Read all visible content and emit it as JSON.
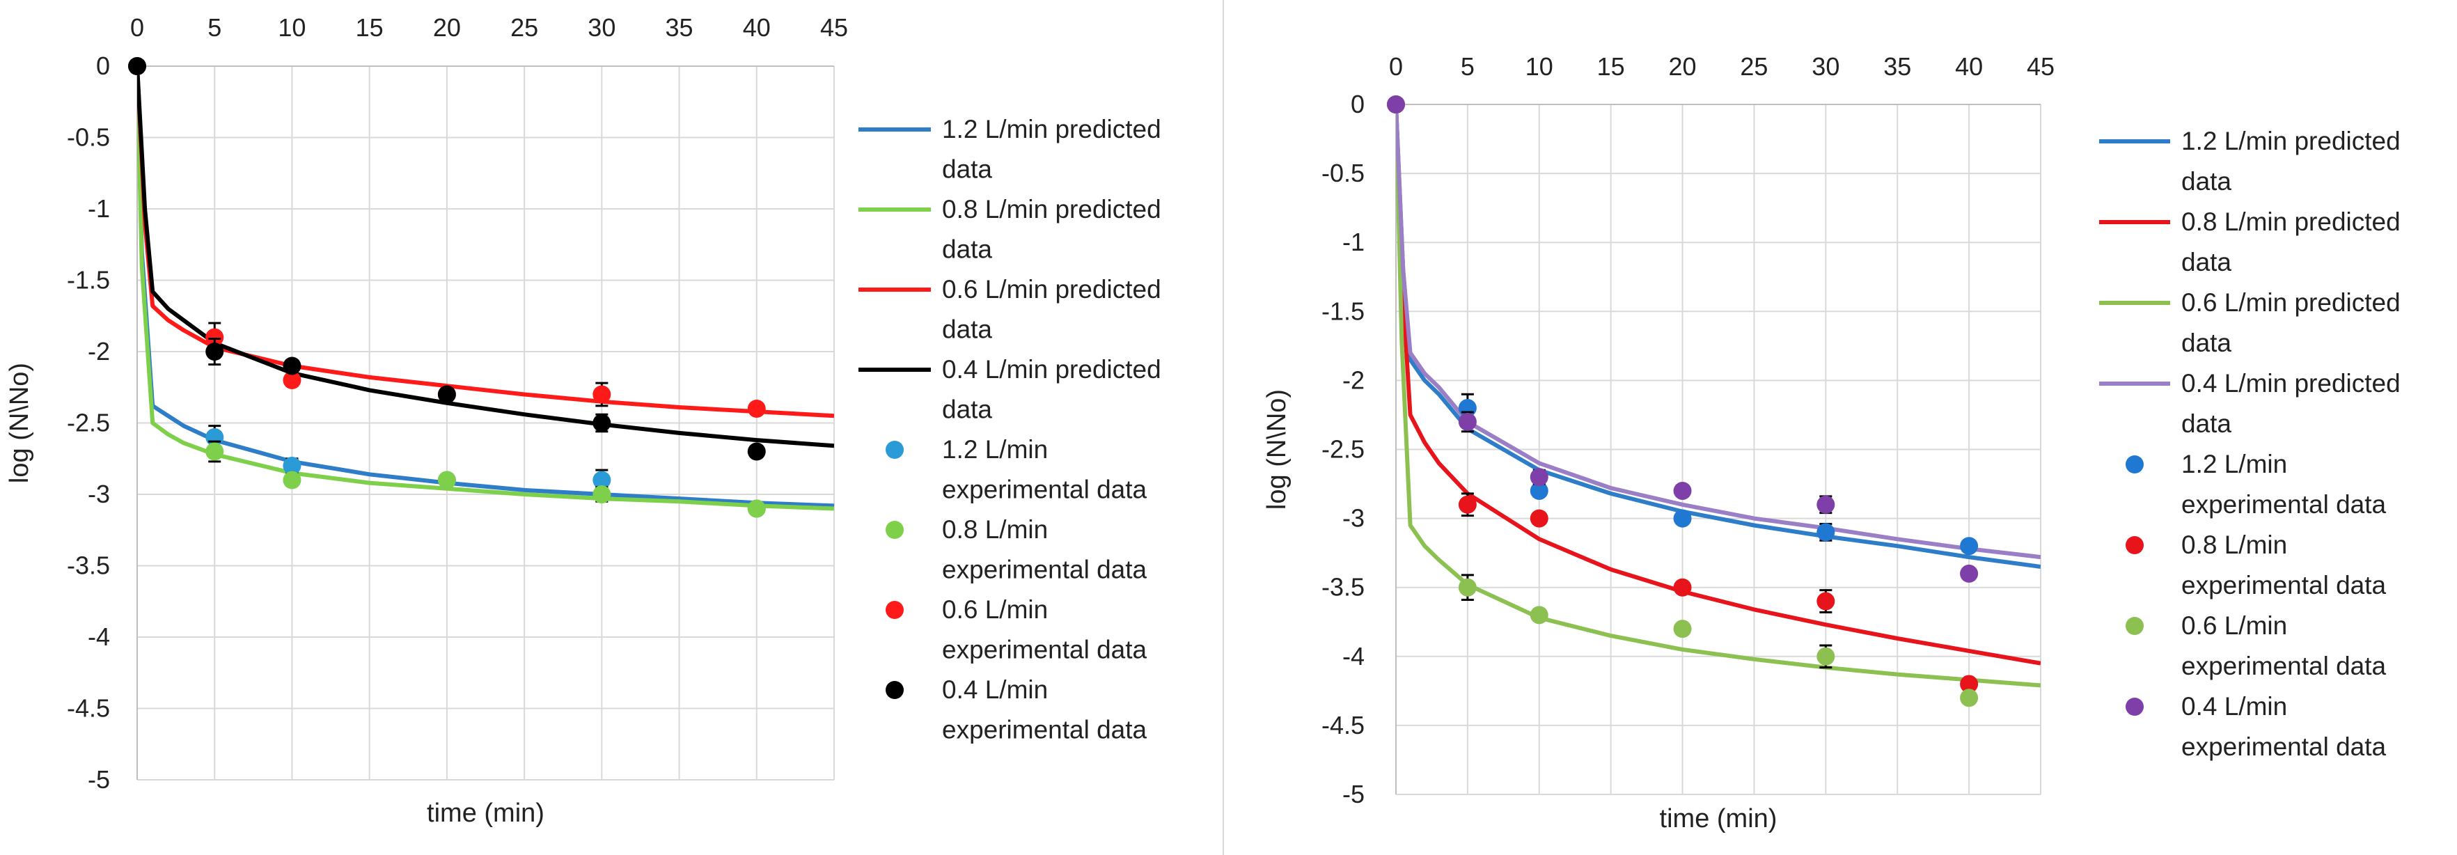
{
  "chart_data": [
    {
      "type": "scatter",
      "xlabel": "time (min)",
      "ylabel": "log (N\\No)",
      "xlim": [
        0,
        45
      ],
      "ylim": [
        -5,
        0
      ],
      "xticks": [
        "0",
        "5",
        "10",
        "15",
        "20",
        "25",
        "30",
        "35",
        "40",
        "45"
      ],
      "yticks": [
        "0",
        "-0.5",
        "-1",
        "-1.5",
        "-2",
        "-2.5",
        "-3",
        "-3.5",
        "-4",
        "-4.5",
        "-5"
      ],
      "legend_position": "right",
      "lines": [
        {
          "name": "1.2 L/min predicted data",
          "color": "#2e7dc8",
          "x": [
            0,
            0.3,
            1,
            2,
            3,
            5,
            10,
            15,
            20,
            25,
            30,
            35,
            40,
            45
          ],
          "y": [
            0,
            -1.3,
            -2.38,
            -2.45,
            -2.52,
            -2.62,
            -2.77,
            -2.86,
            -2.92,
            -2.97,
            -3.0,
            -3.03,
            -3.06,
            -3.08
          ]
        },
        {
          "name": "0.8 L/min predicted data",
          "color": "#7ed04b",
          "x": [
            0,
            0.3,
            1,
            2,
            3,
            5,
            10,
            15,
            20,
            25,
            30,
            35,
            40,
            45
          ],
          "y": [
            0,
            -1.4,
            -2.5,
            -2.58,
            -2.64,
            -2.72,
            -2.85,
            -2.92,
            -2.96,
            -3.0,
            -3.03,
            -3.05,
            -3.08,
            -3.1
          ]
        },
        {
          "name": "0.6 L/min predicted data",
          "color": "#ff1a1a",
          "x": [
            0,
            0.5,
            1,
            2,
            3,
            5,
            10,
            15,
            20,
            25,
            30,
            35,
            40,
            45
          ],
          "y": [
            0,
            -1.1,
            -1.68,
            -1.78,
            -1.85,
            -1.97,
            -2.1,
            -2.18,
            -2.24,
            -2.3,
            -2.35,
            -2.39,
            -2.42,
            -2.45
          ]
        },
        {
          "name": "0.4 L/min predicted data",
          "color": "#000000",
          "x": [
            0,
            0.5,
            1,
            2,
            3,
            5,
            10,
            15,
            20,
            25,
            30,
            35,
            40,
            45
          ],
          "y": [
            0,
            -1.0,
            -1.58,
            -1.7,
            -1.78,
            -1.94,
            -2.15,
            -2.27,
            -2.36,
            -2.44,
            -2.51,
            -2.57,
            -2.62,
            -2.66
          ]
        }
      ],
      "points": [
        {
          "name": "1.2 L/min experimental data",
          "color": "#2a9bd6",
          "x": [
            0,
            5,
            10,
            20,
            30,
            40
          ],
          "y": [
            0,
            -2.6,
            -2.8,
            -2.9,
            -2.9,
            -3.1
          ],
          "err": [
            0,
            0.08,
            0.05,
            0.03,
            0.07,
            0.03
          ]
        },
        {
          "name": "0.8 L/min experimental data",
          "color": "#7ed04b",
          "x": [
            0,
            5,
            10,
            20,
            30,
            40
          ],
          "y": [
            0,
            -2.7,
            -2.9,
            -2.9,
            -3.0,
            -3.1
          ],
          "err": [
            0,
            0.07,
            0.03,
            0.03,
            0.05,
            0.03
          ]
        },
        {
          "name": "0.6 L/min experimental data",
          "color": "#ff1a1a",
          "x": [
            0,
            5,
            10,
            20,
            30,
            40
          ],
          "y": [
            0,
            -1.9,
            -2.2,
            -2.3,
            -2.3,
            -2.4
          ],
          "err": [
            0,
            0.1,
            0.04,
            0.04,
            0.08,
            0.03
          ]
        },
        {
          "name": "0.4 L/min experimental data",
          "color": "#000000",
          "x": [
            0,
            5,
            10,
            20,
            30,
            40
          ],
          "y": [
            0,
            -2.0,
            -2.1,
            -2.3,
            -2.5,
            -2.7
          ],
          "err": [
            0,
            0.09,
            0.04,
            0.04,
            0.06,
            0.03
          ]
        }
      ]
    },
    {
      "type": "scatter",
      "xlabel": "time (min)",
      "ylabel": "log (N\\No)",
      "xlim": [
        0,
        45
      ],
      "ylim": [
        -5,
        0
      ],
      "xticks": [
        "0",
        "5",
        "10",
        "15",
        "20",
        "25",
        "30",
        "35",
        "40",
        "45"
      ],
      "yticks": [
        "0",
        "-0.5",
        "-1",
        "-1.5",
        "-2",
        "-2.5",
        "-3",
        "-3.5",
        "-4",
        "-4.5",
        "-5"
      ],
      "legend_position": "right",
      "lines": [
        {
          "name": "1.2 L/min predicted data",
          "color": "#2e7dc8",
          "x": [
            0,
            0.5,
            1,
            2,
            3,
            5,
            10,
            15,
            20,
            25,
            30,
            35,
            40,
            45
          ],
          "y": [
            0,
            -1.2,
            -1.85,
            -2.0,
            -2.1,
            -2.35,
            -2.65,
            -2.82,
            -2.95,
            -3.05,
            -3.13,
            -3.2,
            -3.28,
            -3.35
          ]
        },
        {
          "name": "0.8 L/min predicted data",
          "color": "#e8141c",
          "x": [
            0,
            0.5,
            1,
            2,
            3,
            5,
            10,
            15,
            20,
            25,
            30,
            35,
            40,
            45
          ],
          "y": [
            0,
            -1.4,
            -2.25,
            -2.45,
            -2.6,
            -2.82,
            -3.15,
            -3.37,
            -3.53,
            -3.66,
            -3.77,
            -3.87,
            -3.96,
            -4.05
          ]
        },
        {
          "name": "0.6 L/min predicted data",
          "color": "#8cc152",
          "x": [
            0,
            0.4,
            1,
            2,
            3,
            5,
            10,
            15,
            20,
            25,
            30,
            35,
            40,
            45
          ],
          "y": [
            0,
            -1.7,
            -3.05,
            -3.2,
            -3.3,
            -3.48,
            -3.72,
            -3.85,
            -3.95,
            -4.02,
            -4.08,
            -4.13,
            -4.17,
            -4.21
          ]
        },
        {
          "name": "0.4 L/min predicted data",
          "color": "#9b7fc6",
          "x": [
            0,
            0.5,
            1,
            2,
            3,
            5,
            10,
            15,
            20,
            25,
            30,
            35,
            40,
            45
          ],
          "y": [
            0,
            -1.2,
            -1.8,
            -1.95,
            -2.05,
            -2.3,
            -2.6,
            -2.78,
            -2.9,
            -3.0,
            -3.07,
            -3.15,
            -3.22,
            -3.28
          ]
        }
      ],
      "points": [
        {
          "name": "1.2 L/min experimental data",
          "color": "#1f78d1",
          "x": [
            0,
            5,
            10,
            20,
            30,
            40
          ],
          "y": [
            0,
            -2.2,
            -2.8,
            -3.0,
            -3.1,
            -3.2
          ],
          "err": [
            0,
            0.1,
            0.04,
            0.04,
            0.06,
            0.03
          ]
        },
        {
          "name": "0.8 L/min experimental data",
          "color": "#e8141c",
          "x": [
            0,
            5,
            10,
            20,
            30,
            40
          ],
          "y": [
            0,
            -2.9,
            -3.0,
            -3.5,
            -3.6,
            -4.2
          ],
          "err": [
            0,
            0.08,
            0.04,
            0.04,
            0.08,
            0.04
          ]
        },
        {
          "name": "0.6 L/min experimental data",
          "color": "#8cc152",
          "x": [
            0,
            5,
            10,
            20,
            30,
            40
          ],
          "y": [
            0,
            -3.5,
            -3.7,
            -3.8,
            -4.0,
            -4.3
          ],
          "err": [
            0,
            0.09,
            0.04,
            0.04,
            0.08,
            0.03
          ]
        },
        {
          "name": "0.4 L/min experimental data",
          "color": "#7f3fa8",
          "x": [
            0,
            5,
            10,
            20,
            30,
            40
          ],
          "y": [
            0,
            -2.3,
            -2.7,
            -2.8,
            -2.9,
            -3.4
          ],
          "err": [
            0,
            0.07,
            0.05,
            0.04,
            0.06,
            0.03
          ]
        }
      ]
    }
  ]
}
